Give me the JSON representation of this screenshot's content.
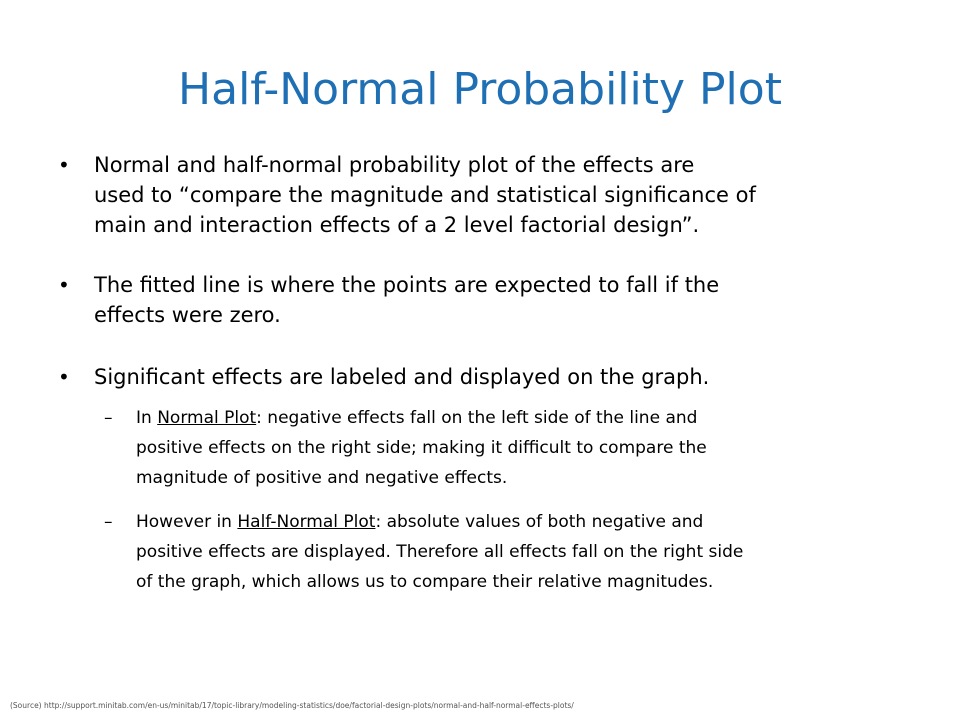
{
  "slide": {
    "title": "Half-Normal Probability Plot",
    "bullets": [
      {
        "marker": "•",
        "lines": [
          "Normal and half-normal probability plot of the effects are",
          "used to “compare the magnitude and statistical significance of",
          "main and interaction effects of a 2 level factorial design”."
        ]
      },
      {
        "marker": "•",
        "lines": [
          "The fitted line is where the points are expected to fall if the",
          "effects were zero."
        ]
      },
      {
        "marker": "•",
        "lines": [
          "Significant effects are labeled and displayed on the graph."
        ]
      }
    ],
    "sub_bullets": [
      {
        "marker": "–",
        "prefix": "In ",
        "underlined": "Normal Plot",
        "line1_rest": ": negative effects fall on the left side of the line and",
        "lines": [
          "positive effects on the right side; making it difficult to compare the",
          "magnitude of positive and negative effects."
        ]
      },
      {
        "marker": "–",
        "prefix": "However in ",
        "underlined": "Half-Normal Plot",
        "line1_rest": ": absolute values of both negative and",
        "lines": [
          "positive effects are displayed. Therefore all effects fall on the right side",
          "of the graph, which allows us to compare their relative magnitudes."
        ]
      }
    ],
    "source": "(Source) http://support.minitab.com/en-us/minitab/17/topic-library/modeling-statistics/doe/factorial-design-plots/normal-and-half-normal-effects-plots/",
    "colors": {
      "title": "#1f6fb4",
      "text": "#000000",
      "source": "#555555"
    }
  }
}
